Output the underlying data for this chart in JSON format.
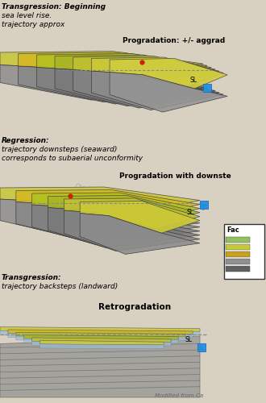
{
  "bg_color": "#d8d0c0",
  "panel1_labels": [
    "Transgression: Beginning",
    "sea level rise.",
    "trajectory approx"
  ],
  "panel1_right": "Progradation: +/- aggrad",
  "panel2_labels": [
    "Regression:",
    "trajectory downsteps (seaward)",
    "corresponds to subaerial unconformity"
  ],
  "panel2_right": "Progradation with downste",
  "panel3_labels": [
    "Transgression:",
    "trajectory backsteps (landward)"
  ],
  "panel3_right": "Retrogradation",
  "sl_label": "SL",
  "sl_arrow_color": "#2090d0",
  "sl_box_color": "#3090e8",
  "dashed_color": "#888888",
  "red_dot_color": "#cc2200",
  "facies_title": "Fac",
  "facies_colors": [
    "#90c060",
    "#c8c840",
    "#c8a020",
    "#909090",
    "#606060"
  ],
  "modified_text": "Modified from Ca",
  "watermark_text": "geicsareastome.com",
  "warm_colors": [
    "#c8c840",
    "#d4b820",
    "#b4c020",
    "#a8b428",
    "#c0c030",
    "#ccc838",
    "#d0cc40"
  ],
  "gray_colors": [
    "#909090",
    "#888888",
    "#808080",
    "#7a7a7a",
    "#848484",
    "#8c8c8c",
    "#949494"
  ]
}
